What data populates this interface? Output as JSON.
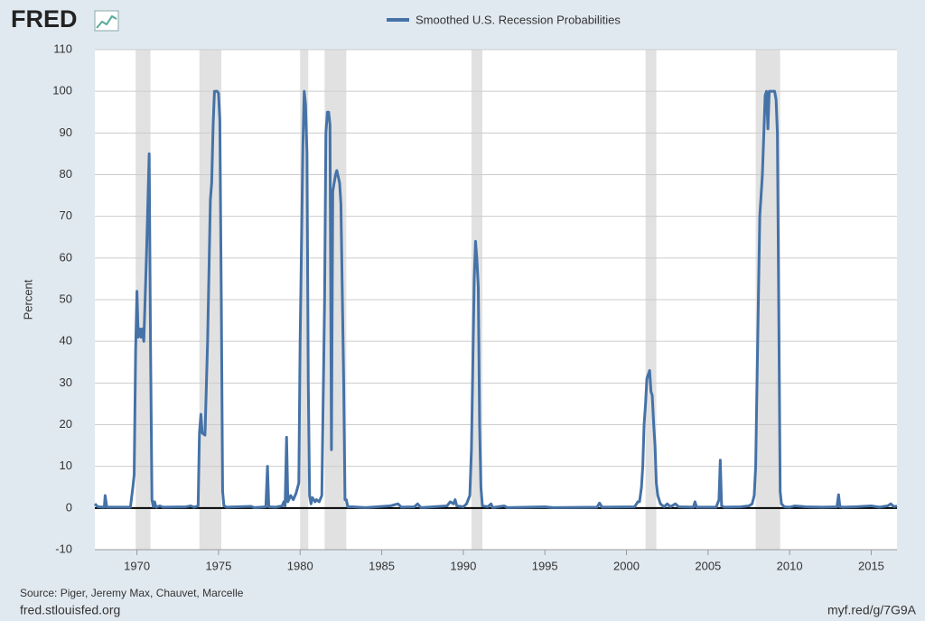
{
  "chart_data": {
    "type": "line",
    "logo": "FRED",
    "ylabel": "Percent",
    "source": "Source: Piger, Jeremy Max, Chauvet, Marcelle",
    "site": "fred.stlouisfed.org",
    "short_url": "myf.red/g/7G9A",
    "xlim": [
      1967.42,
      2016.58
    ],
    "ylim": [
      -10,
      110
    ],
    "xticks": [
      1970,
      1975,
      1980,
      1985,
      1990,
      1995,
      2000,
      2005,
      2010,
      2015
    ],
    "yticks": [
      -10,
      0,
      10,
      20,
      30,
      40,
      50,
      60,
      70,
      80,
      90,
      100,
      110
    ],
    "grid": true,
    "legend": "top",
    "recession_color": "#e1e1e1",
    "recessions": [
      [
        1969.92,
        1970.83
      ],
      [
        1973.83,
        1975.17
      ],
      [
        1980.0,
        1980.5
      ],
      [
        1981.5,
        1982.83
      ],
      [
        1990.5,
        1991.17
      ],
      [
        2001.17,
        2001.83
      ],
      [
        2007.92,
        2009.42
      ]
    ],
    "x": [
      1967.42,
      1967.6,
      1968.0,
      1968.05,
      1968.15,
      1969.6,
      1969.75,
      1969.83,
      1969.92,
      1970.0,
      1970.08,
      1970.17,
      1970.25,
      1970.33,
      1970.42,
      1970.58,
      1970.75,
      1970.83,
      1970.92,
      1971.0,
      1971.08,
      1971.17,
      1971.4,
      1971.6,
      1973.0,
      1973.3,
      1973.5,
      1973.75,
      1973.83,
      1973.92,
      1974.0,
      1974.17,
      1974.33,
      1974.5,
      1974.58,
      1974.67,
      1974.75,
      1974.92,
      1975.0,
      1975.08,
      1975.17,
      1975.25,
      1975.33,
      1975.5,
      1977.0,
      1977.2,
      1977.9,
      1978.0,
      1978.08,
      1978.5,
      1978.9,
      1979.0,
      1979.08,
      1979.17,
      1979.25,
      1979.42,
      1979.58,
      1979.75,
      1979.92,
      1980.0,
      1980.17,
      1980.25,
      1980.33,
      1980.42,
      1980.5,
      1980.58,
      1980.67,
      1980.75,
      1980.92,
      1981.0,
      1981.17,
      1981.33,
      1981.5,
      1981.58,
      1981.67,
      1981.75,
      1981.83,
      1981.92,
      1982.0,
      1982.17,
      1982.25,
      1982.42,
      1982.5,
      1982.67,
      1982.75,
      1982.83,
      1982.92,
      1983.2,
      1984.0,
      1985.5,
      1986.0,
      1986.2,
      1987.0,
      1987.2,
      1987.4,
      1989.0,
      1989.2,
      1989.4,
      1989.5,
      1989.6,
      1990.0,
      1990.2,
      1990.4,
      1990.5,
      1990.67,
      1990.75,
      1990.83,
      1990.92,
      1991.0,
      1991.08,
      1991.17,
      1991.5,
      1991.7,
      1991.8,
      1992.5,
      1992.7,
      1995.0,
      1995.5,
      1998.2,
      1998.35,
      1998.5,
      2000.5,
      2000.7,
      2000.8,
      2000.92,
      2001.0,
      2001.08,
      2001.17,
      2001.25,
      2001.33,
      2001.42,
      2001.5,
      2001.58,
      2001.67,
      2001.75,
      2001.83,
      2001.92,
      2002.08,
      2002.3,
      2002.5,
      2002.7,
      2003.0,
      2003.2,
      2004.1,
      2004.2,
      2004.3,
      2005.5,
      2005.67,
      2005.75,
      2005.83,
      2006.0,
      2007.0,
      2007.5,
      2007.7,
      2007.83,
      2007.92,
      2008.0,
      2008.17,
      2008.33,
      2008.42,
      2008.5,
      2008.58,
      2008.67,
      2008.75,
      2008.92,
      2009.08,
      2009.17,
      2009.25,
      2009.33,
      2009.42,
      2009.5,
      2009.67,
      2010.0,
      2010.3,
      2011.0,
      2012.0,
      2012.9,
      2013.0,
      2013.08,
      2013.3,
      2014.0,
      2015.0,
      2015.5,
      2016.0,
      2016.2,
      2016.4,
      2016.58
    ],
    "series": [
      {
        "name": "Smoothed U.S. Recession Probabilities",
        "color": "#4572a7",
        "values": [
          1,
          0.3,
          0.2,
          3,
          0.2,
          0.2,
          5,
          8,
          38,
          52,
          41,
          43,
          41,
          43,
          40,
          60,
          85,
          40,
          2,
          0.3,
          1.5,
          0.2,
          0.5,
          0.2,
          0.3,
          0.5,
          0.2,
          0.5,
          18,
          22.5,
          18,
          17.5,
          40,
          74,
          78,
          92,
          100,
          100,
          99.5,
          93,
          50,
          4,
          0.5,
          0.2,
          0.4,
          0.1,
          0.3,
          10,
          0.3,
          0.2,
          0.5,
          1.5,
          0.5,
          17,
          1.5,
          3,
          2,
          3.5,
          6,
          40,
          87,
          100,
          97,
          85,
          30,
          3,
          1,
          2.5,
          1.5,
          2,
          1.5,
          3,
          50,
          90,
          95,
          95,
          92,
          14,
          76,
          80,
          81,
          78,
          73,
          30,
          2,
          2,
          0.3,
          0.3,
          0.1,
          0.5,
          1,
          0.2,
          0.3,
          1,
          0.1,
          0.5,
          1.5,
          1,
          2,
          0.5,
          0.3,
          1,
          3,
          14,
          55,
          64,
          60,
          53,
          20,
          5,
          0.5,
          0.3,
          1,
          0.1,
          0.5,
          0.1,
          0.3,
          0.1,
          0.2,
          1.2,
          0.2,
          0.3,
          1.5,
          1.5,
          5,
          10,
          20,
          25,
          31,
          32,
          33,
          28,
          27,
          20,
          15,
          6,
          3,
          1,
          0.3,
          1,
          0.3,
          1,
          0.3,
          0.2,
          1.5,
          0.2,
          0.2,
          2,
          11.5,
          0.5,
          0.2,
          0.3,
          0.5,
          1,
          3,
          10,
          30,
          70,
          80,
          90,
          99,
          100,
          91,
          100,
          100,
          100,
          98,
          90,
          50,
          4,
          1,
          0.3,
          0.2,
          0.5,
          0.3,
          0.2,
          0.3,
          3.2,
          0.3,
          0.2,
          0.3,
          0.5,
          0.2,
          0.5,
          1,
          0.3,
          0.5
        ]
      }
    ]
  }
}
